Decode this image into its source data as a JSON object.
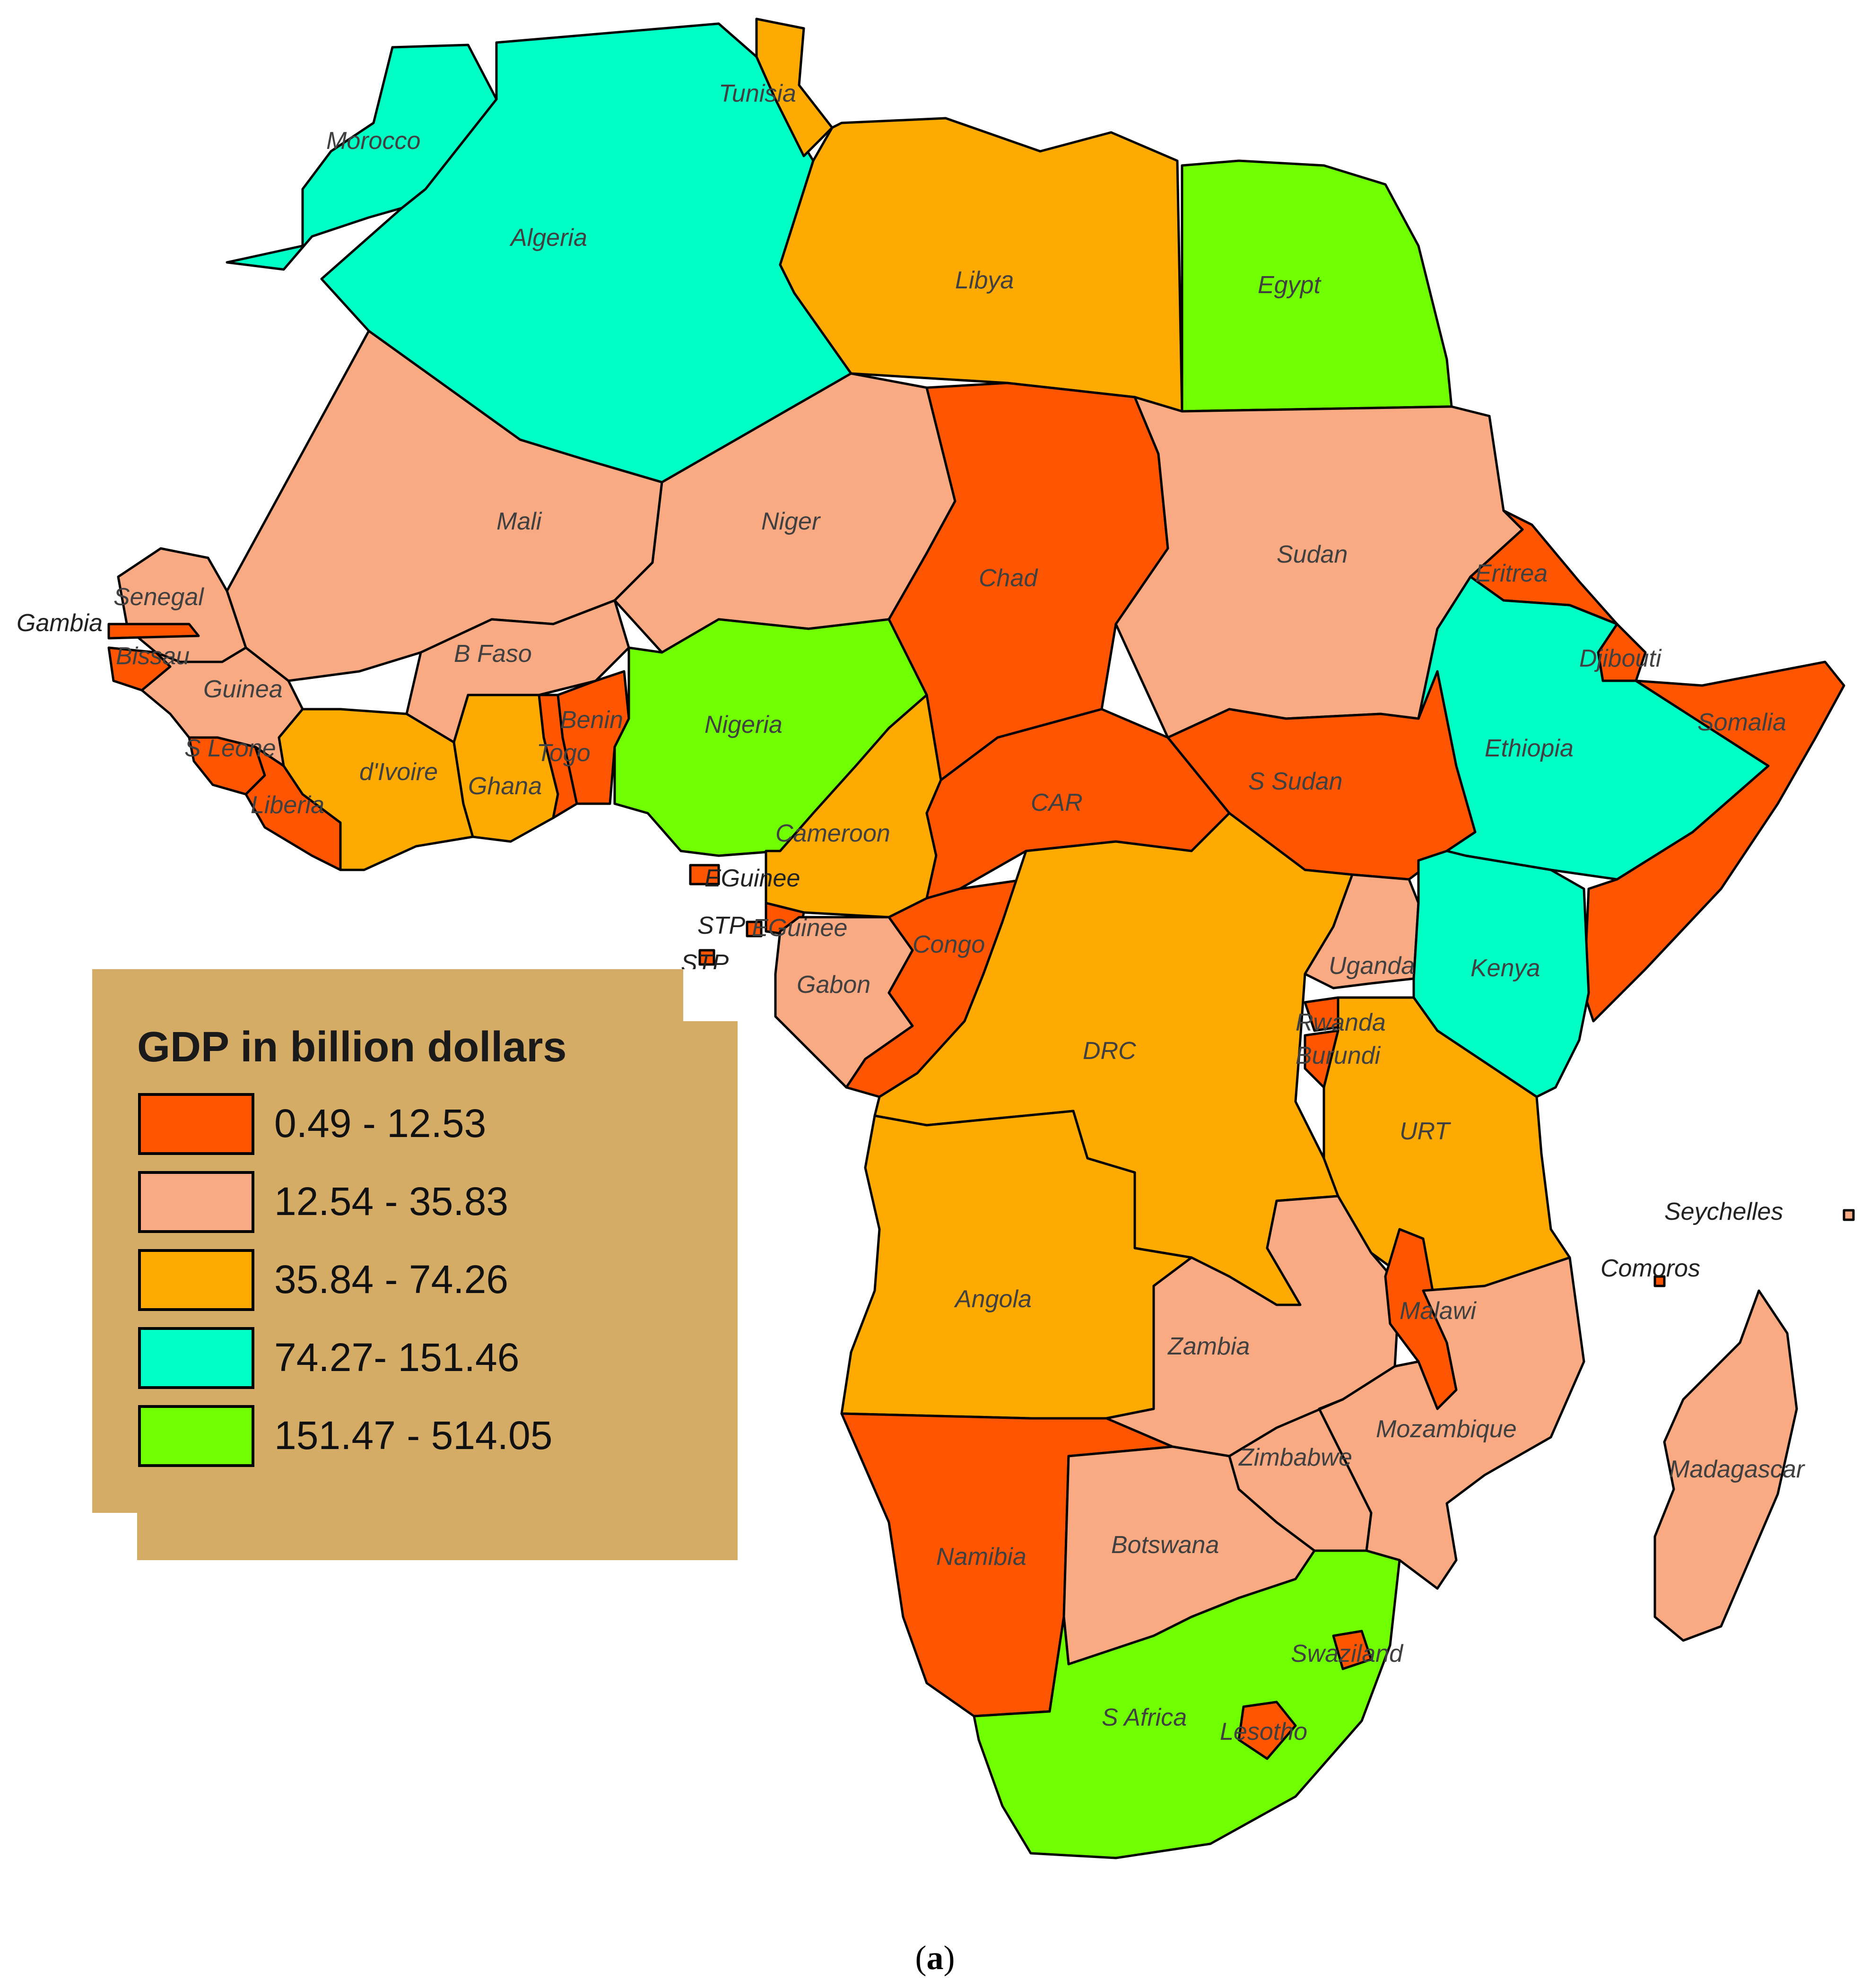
{
  "legend": {
    "title": "GDP in billion dollars",
    "classes": [
      {
        "label": "0.49 - 12.53",
        "color": "#FF5500"
      },
      {
        "label": "12.54 - 35.83",
        "color": "#FAAA82"
      },
      {
        "label": "35.84 - 74.26",
        "color": "#FFAA00"
      },
      {
        "label": "74.27- 151.46",
        "color": "#00FFC5"
      },
      {
        "label": "151.47 - 514.05",
        "color": "#70FF00"
      }
    ]
  },
  "countries": {
    "morocco": {
      "label": "Morocco",
      "class": 3
    },
    "algeria": {
      "label": "Algeria",
      "class": 3
    },
    "tunisia": {
      "label": "Tunisia",
      "class": 2
    },
    "libya": {
      "label": "Libya",
      "class": 2
    },
    "egypt": {
      "label": "Egypt",
      "class": 4
    },
    "mali": {
      "label": "Mali",
      "class": 1
    },
    "niger": {
      "label": "Niger",
      "class": 1
    },
    "chad": {
      "label": "Chad",
      "class": 0
    },
    "sudan": {
      "label": "Sudan",
      "class": 1
    },
    "eritrea": {
      "label": "Eritrea",
      "class": 0
    },
    "djibouti": {
      "label": "Djibouti",
      "class": 0
    },
    "senegal": {
      "label": "Senegal",
      "class": 1
    },
    "gambia": {
      "label": "Gambia",
      "class": 0
    },
    "bissau": {
      "label": "Bissau",
      "class": 0
    },
    "guinea": {
      "label": "Guinea",
      "class": 1
    },
    "sleone": {
      "label": "S Leone",
      "class": 0
    },
    "liberia": {
      "label": "Liberia",
      "class": 0
    },
    "ivoire": {
      "label": "d'Ivoire",
      "class": 2
    },
    "bfaso": {
      "label": "B Faso",
      "class": 1
    },
    "ghana": {
      "label": "Ghana",
      "class": 2
    },
    "togo": {
      "label": "Togo",
      "class": 0
    },
    "benin": {
      "label": "Benin",
      "class": 0
    },
    "nigeria": {
      "label": "Nigeria",
      "class": 4
    },
    "cameroon": {
      "label": "Cameroon",
      "class": 2
    },
    "car": {
      "label": "CAR",
      "class": 0
    },
    "ssudan": {
      "label": "S Sudan",
      "class": 0
    },
    "ethiopia": {
      "label": "Ethiopia",
      "class": 3
    },
    "somalia": {
      "label": "Somalia",
      "class": 0
    },
    "eguinee1": {
      "label": "EGuinee",
      "class": 0
    },
    "stp1": {
      "label": "STP",
      "class": 0
    },
    "eguinee2": {
      "label": "EGuinee",
      "class": 0
    },
    "stp2": {
      "label": "STP",
      "class": 0
    },
    "gabon": {
      "label": "Gabon",
      "class": 1
    },
    "congo": {
      "label": "Congo",
      "class": 0
    },
    "drc": {
      "label": "DRC",
      "class": 2
    },
    "uganda": {
      "label": "Uganda",
      "class": 1
    },
    "kenya": {
      "label": "Kenya",
      "class": 3
    },
    "rwanda": {
      "label": "Rwanda",
      "class": 0
    },
    "burundi": {
      "label": "Burundi",
      "class": 0
    },
    "urt": {
      "label": "URT",
      "class": 2
    },
    "seychelles": {
      "label": "Seychelles",
      "class": 1
    },
    "comoros": {
      "label": "Comoros",
      "class": 0
    },
    "angola": {
      "label": "Angola",
      "class": 2
    },
    "zambia": {
      "label": "Zambia",
      "class": 1
    },
    "malawi": {
      "label": "Malawi",
      "class": 0
    },
    "mozambique": {
      "label": "Mozambique",
      "class": 1
    },
    "madagascar": {
      "label": "Madagascar",
      "class": 1
    },
    "zimbabwe": {
      "label": "Zimbabwe",
      "class": 1
    },
    "namibia": {
      "label": "Namibia",
      "class": 0
    },
    "botswana": {
      "label": "Botswana",
      "class": 1
    },
    "safrica": {
      "label": "S Africa",
      "class": 4
    },
    "swaziland": {
      "label": "Swaziland",
      "class": 0
    },
    "lesotho": {
      "label": "Lesotho",
      "class": 0
    }
  },
  "caption": {
    "open": "(",
    "letter": "a",
    "close": ")"
  }
}
